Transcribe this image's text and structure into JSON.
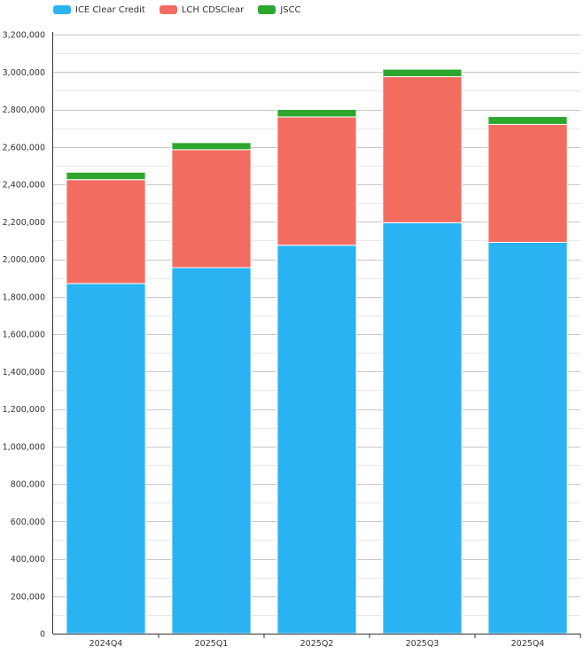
{
  "chart_data": {
    "type": "bar",
    "stacked": true,
    "categories": [
      "2024Q4",
      "2025Q1",
      "2025Q2",
      "2025Q3",
      "2025Q4"
    ],
    "series": [
      {
        "name": "ICE Clear Credit",
        "color": "#29b3f3",
        "values": [
          1870000,
          1955000,
          2075000,
          2195000,
          2090000
        ]
      },
      {
        "name": "LCH CDSClear",
        "color": "#f26c60",
        "values": [
          555000,
          630000,
          685000,
          780000,
          630000
        ]
      },
      {
        "name": "JSCC",
        "color": "#2ea62e",
        "values": [
          40000,
          38000,
          40000,
          40000,
          42000
        ]
      }
    ],
    "yticks": [
      "0",
      "200,000",
      "400,000",
      "600,000",
      "800,000",
      "1,000,000",
      "1,200,000",
      "1,400,000",
      "1,600,000",
      "1,800,000",
      "2,000,000",
      "2,200,000",
      "2,400,000",
      "2,600,000",
      "2,800,000",
      "3,000,000",
      "3,200,000"
    ],
    "ylim": [
      0,
      3200000
    ],
    "ytick_step": 200000,
    "grid": true,
    "legend_position": "top-left",
    "title": "",
    "xlabel": "",
    "ylabel": ""
  }
}
